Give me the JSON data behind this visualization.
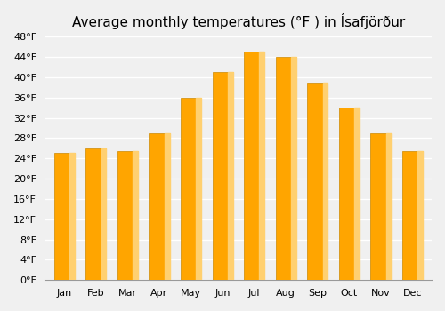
{
  "title": "Average monthly temperatures (°F ) in Ísafjörður",
  "months": [
    "Jan",
    "Feb",
    "Mar",
    "Apr",
    "May",
    "Jun",
    "Jul",
    "Aug",
    "Sep",
    "Oct",
    "Nov",
    "Dec"
  ],
  "values": [
    25.0,
    26.0,
    25.5,
    29.0,
    36.0,
    41.0,
    45.0,
    44.0,
    39.0,
    34.0,
    29.0,
    25.5
  ],
  "bar_color_main": "#FFA500",
  "bar_color_highlight": "#FFD070",
  "ylim": [
    0,
    48
  ],
  "yticks": [
    0,
    4,
    8,
    12,
    16,
    20,
    24,
    28,
    32,
    36,
    40,
    44,
    48
  ],
  "ytick_labels": [
    "0°F",
    "4°F",
    "8°F",
    "12°F",
    "16°F",
    "20°F",
    "24°F",
    "28°F",
    "32°F",
    "36°F",
    "40°F",
    "44°F",
    "48°F"
  ],
  "bg_color": "#f0f0f0",
  "grid_color": "#ffffff",
  "title_fontsize": 11
}
